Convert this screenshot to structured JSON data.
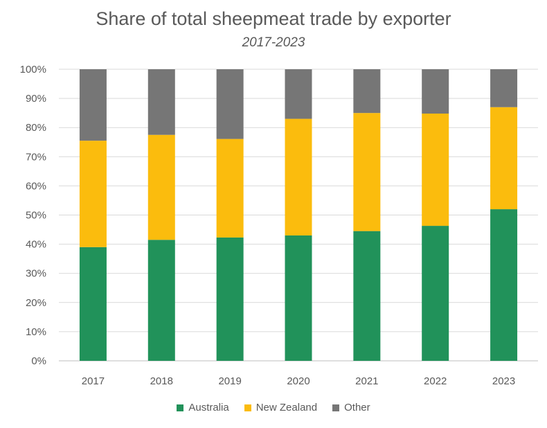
{
  "chart_data": {
    "type": "bar",
    "stacked": true,
    "title": "Share of total sheepmeat trade by exporter",
    "subtitle": "2017-2023",
    "categories": [
      "2017",
      "2018",
      "2019",
      "2020",
      "2021",
      "2022",
      "2023"
    ],
    "series": [
      {
        "name": "Australia",
        "color": "#21925a",
        "values": [
          39,
          41.5,
          42.3,
          43,
          44.5,
          46.3,
          52
        ]
      },
      {
        "name": "New Zealand",
        "color": "#fbbc0d",
        "values": [
          36.5,
          36,
          33.8,
          40,
          40.5,
          38.5,
          35
        ]
      },
      {
        "name": "Other",
        "color": "#767676",
        "values": [
          24.5,
          22.5,
          23.9,
          17,
          15,
          15.2,
          13
        ]
      }
    ],
    "ylim": [
      0,
      100
    ],
    "yticks": [
      "0%",
      "10%",
      "20%",
      "30%",
      "40%",
      "50%",
      "60%",
      "70%",
      "80%",
      "90%",
      "100%"
    ],
    "grid": true,
    "legend_position": "bottom"
  }
}
